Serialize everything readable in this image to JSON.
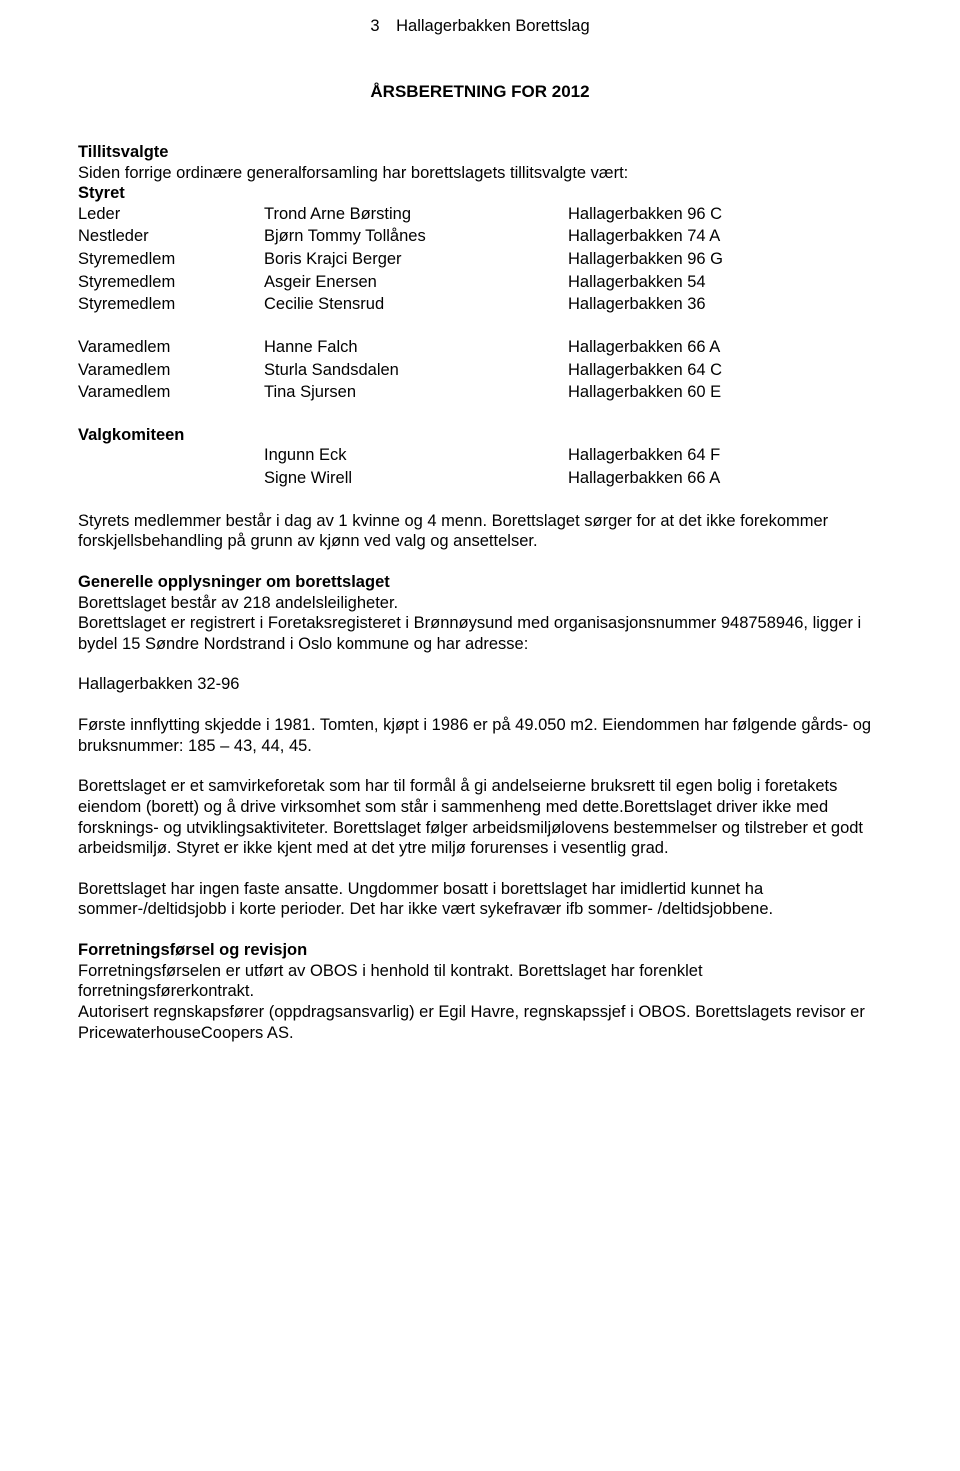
{
  "header": {
    "page_number": "3",
    "org": "Hallagerbakken Borettslag"
  },
  "title": "ÅRSBERETNING FOR 2012",
  "tillitsvalgte": {
    "heading": "Tillitsvalgte",
    "intro": "Siden forrige ordinære generalforsamling har borettslagets tillitsvalgte vært:"
  },
  "styret": {
    "heading": "Styret",
    "rows": [
      {
        "role": "Leder",
        "name": "Trond Arne Børsting",
        "addr": "Hallagerbakken 96 C"
      },
      {
        "role": "Nestleder",
        "name": "Bjørn Tommy Tollånes",
        "addr": "Hallagerbakken 74 A"
      },
      {
        "role": "Styremedlem",
        "name": "Boris Krajci Berger",
        "addr": "Hallagerbakken 96 G"
      },
      {
        "role": "Styremedlem",
        "name": "Asgeir Enersen",
        "addr": "Hallagerbakken 54"
      },
      {
        "role": "Styremedlem",
        "name": "Cecilie Stensrud",
        "addr": "Hallagerbakken 36"
      }
    ]
  },
  "vara": {
    "rows": [
      {
        "role": "Varamedlem",
        "name": "Hanne Falch",
        "addr": "Hallagerbakken 66 A"
      },
      {
        "role": "Varamedlem",
        "name": "Sturla Sandsdalen",
        "addr": "Hallagerbakken 64 C"
      },
      {
        "role": "Varamedlem",
        "name": "Tina Sjursen",
        "addr": "Hallagerbakken 60 E"
      }
    ]
  },
  "valgkomiteen": {
    "heading": "Valgkomiteen",
    "rows": [
      {
        "role": "",
        "name": "Ingunn Eck",
        "addr": "Hallagerbakken 64 F"
      },
      {
        "role": "",
        "name": "Signe Wirell",
        "addr": "Hallagerbakken 66 A"
      }
    ]
  },
  "body": {
    "p1": "Styrets medlemmer består i dag av 1 kvinne og 4 menn.  Borettslaget sørger for at det ikke forekommer forskjellsbehandling på grunn av kjønn ved valg og ansettelser.",
    "generelle_heading": "Generelle opplysninger om borettslaget",
    "p2a": "Borettslaget består av 218 andelsleiligheter.",
    "p2b": "Borettslaget er registrert i Foretaksregisteret i Brønnøysund med organisasjonsnummer 948758946, ligger i bydel 15 Søndre Nordstrand i Oslo kommune og har adresse:",
    "p3": "Hallagerbakken 32-96",
    "p4": "Første innflytting skjedde i 1981. Tomten, kjøpt i 1986 er på 49.050 m2. Eiendommen har følgende gårds- og bruksnummer:  185 – 43, 44, 45.",
    "p5": "Borettslaget er et samvirkeforetak som har til formål å gi andelseierne bruksrett til egen bolig i foretakets eiendom (borett) og å drive virksomhet som står i sammenheng med dette.Borettslaget driver ikke med forsknings- og utviklingsaktiviteter. Borettslaget følger arbeidsmiljølovens bestemmelser og tilstreber et godt arbeidsmiljø. Styret er ikke kjent med at det ytre miljø forurenses i vesentlig grad.",
    "p6": "Borettslaget har ingen faste ansatte. Ungdommer bosatt i borettslaget har imidlertid kunnet ha sommer-/deltidsjobb i korte perioder. Det har ikke vært sykefravær ifb sommer- /deltidsjobbene.",
    "forretning_heading": "Forretningsførsel og revisjon",
    "p7a": "Forretningsførselen er utført av OBOS i henhold til kontrakt.  Borettslaget har forenklet forretningsførerkontrakt.",
    "p7b": "Autorisert regnskapsfører (oppdragsansvarlig) er Egil Havre, regnskapssjef i OBOS. Borettslagets revisor er PricewaterhouseCoopers AS."
  }
}
